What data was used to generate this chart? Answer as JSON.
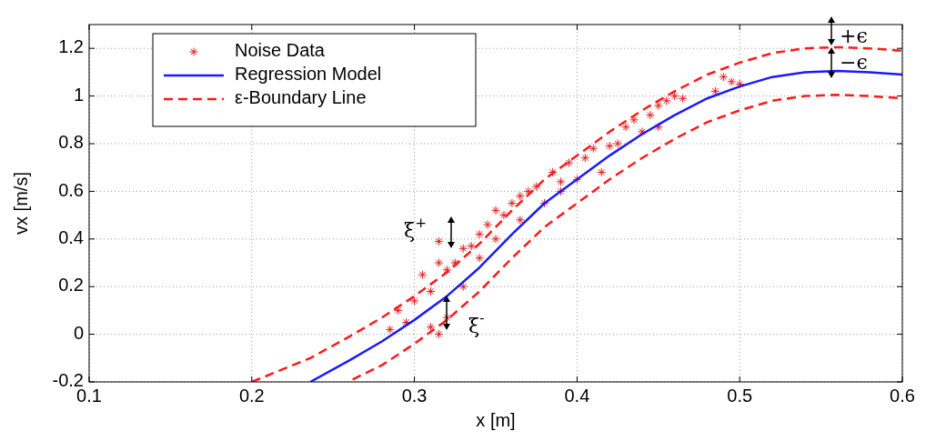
{
  "chart_data": {
    "type": "scatter",
    "xlabel": "x [m]",
    "ylabel": "vx [m/s]",
    "xlim": [
      0.1,
      0.6
    ],
    "xticks": [
      0.1,
      0.2,
      0.3,
      0.4,
      0.5,
      0.6
    ],
    "ylim": [
      -0.2,
      1.3
    ],
    "yticks": [
      -0.2,
      0,
      0.2,
      0.4,
      0.6,
      0.8,
      1,
      1.2
    ],
    "grid": true,
    "legend": "top left",
    "series": [
      {
        "name": "Noise Data",
        "marker": "cross",
        "color": "#e02020",
        "x": [
          0.285,
          0.29,
          0.295,
          0.3,
          0.305,
          0.31,
          0.31,
          0.315,
          0.315,
          0.315,
          0.32,
          0.32,
          0.325,
          0.33,
          0.33,
          0.335,
          0.34,
          0.34,
          0.345,
          0.35,
          0.35,
          0.355,
          0.36,
          0.365,
          0.365,
          0.37,
          0.375,
          0.38,
          0.385,
          0.39,
          0.39,
          0.395,
          0.4,
          0.405,
          0.41,
          0.415,
          0.42,
          0.425,
          0.43,
          0.435,
          0.44,
          0.445,
          0.45,
          0.45,
          0.455,
          0.46,
          0.465,
          0.485,
          0.49,
          0.495,
          0.5
        ],
        "values": [
          0.02,
          0.1,
          0.05,
          0.14,
          0.25,
          0.03,
          0.18,
          0.0,
          0.3,
          0.39,
          0.27,
          0.07,
          0.3,
          0.36,
          0.2,
          0.37,
          0.32,
          0.42,
          0.46,
          0.52,
          0.4,
          0.5,
          0.55,
          0.58,
          0.48,
          0.6,
          0.62,
          0.55,
          0.68,
          0.64,
          0.6,
          0.72,
          0.65,
          0.74,
          0.78,
          0.68,
          0.79,
          0.8,
          0.87,
          0.9,
          0.85,
          0.92,
          0.96,
          0.87,
          0.98,
          1.0,
          0.99,
          1.02,
          1.08,
          1.06,
          1.05
        ]
      },
      {
        "name": "Regression Model",
        "type": "line",
        "color": "#1a1aff",
        "line_style": "solid",
        "x": [
          0.236,
          0.26,
          0.28,
          0.3,
          0.32,
          0.34,
          0.36,
          0.38,
          0.4,
          0.42,
          0.44,
          0.46,
          0.48,
          0.5,
          0.52,
          0.54,
          0.56,
          0.58,
          0.6
        ],
        "values": [
          -0.2,
          -0.11,
          -0.03,
          0.06,
          0.16,
          0.28,
          0.42,
          0.55,
          0.65,
          0.75,
          0.84,
          0.92,
          0.99,
          1.04,
          1.08,
          1.1,
          1.105,
          1.1,
          1.09
        ]
      },
      {
        "name": "ε-Boundary Line",
        "type": "line",
        "color": "#ff1a1a",
        "line_style": "dashed",
        "x": [
          0.2,
          0.236,
          0.26,
          0.28,
          0.3,
          0.32,
          0.34,
          0.36,
          0.38,
          0.4,
          0.42,
          0.44,
          0.46,
          0.48,
          0.5,
          0.52,
          0.54,
          0.56,
          0.58,
          0.6
        ],
        "values": [
          -0.2,
          -0.1,
          -0.01,
          0.07,
          0.16,
          0.26,
          0.38,
          0.52,
          0.65,
          0.75,
          0.85,
          0.94,
          1.02,
          1.09,
          1.14,
          1.18,
          1.2,
          1.205,
          1.2,
          1.19
        ]
      },
      {
        "type": "line",
        "color": "#ff1a1a",
        "line_style": "dashed",
        "x": [
          0.262,
          0.28,
          0.3,
          0.32,
          0.34,
          0.36,
          0.38,
          0.4,
          0.42,
          0.44,
          0.46,
          0.48,
          0.5,
          0.52,
          0.54,
          0.56,
          0.58,
          0.6
        ],
        "values": [
          -0.19,
          -0.13,
          -0.04,
          0.06,
          0.18,
          0.32,
          0.45,
          0.55,
          0.65,
          0.74,
          0.82,
          0.89,
          0.94,
          0.98,
          1.0,
          1.005,
          1.0,
          0.99
        ]
      }
    ],
    "annotations": [
      "ξ$^{+}$",
      "ξ$^{-}$",
      "+ϵ",
      "−ϵ"
    ]
  }
}
